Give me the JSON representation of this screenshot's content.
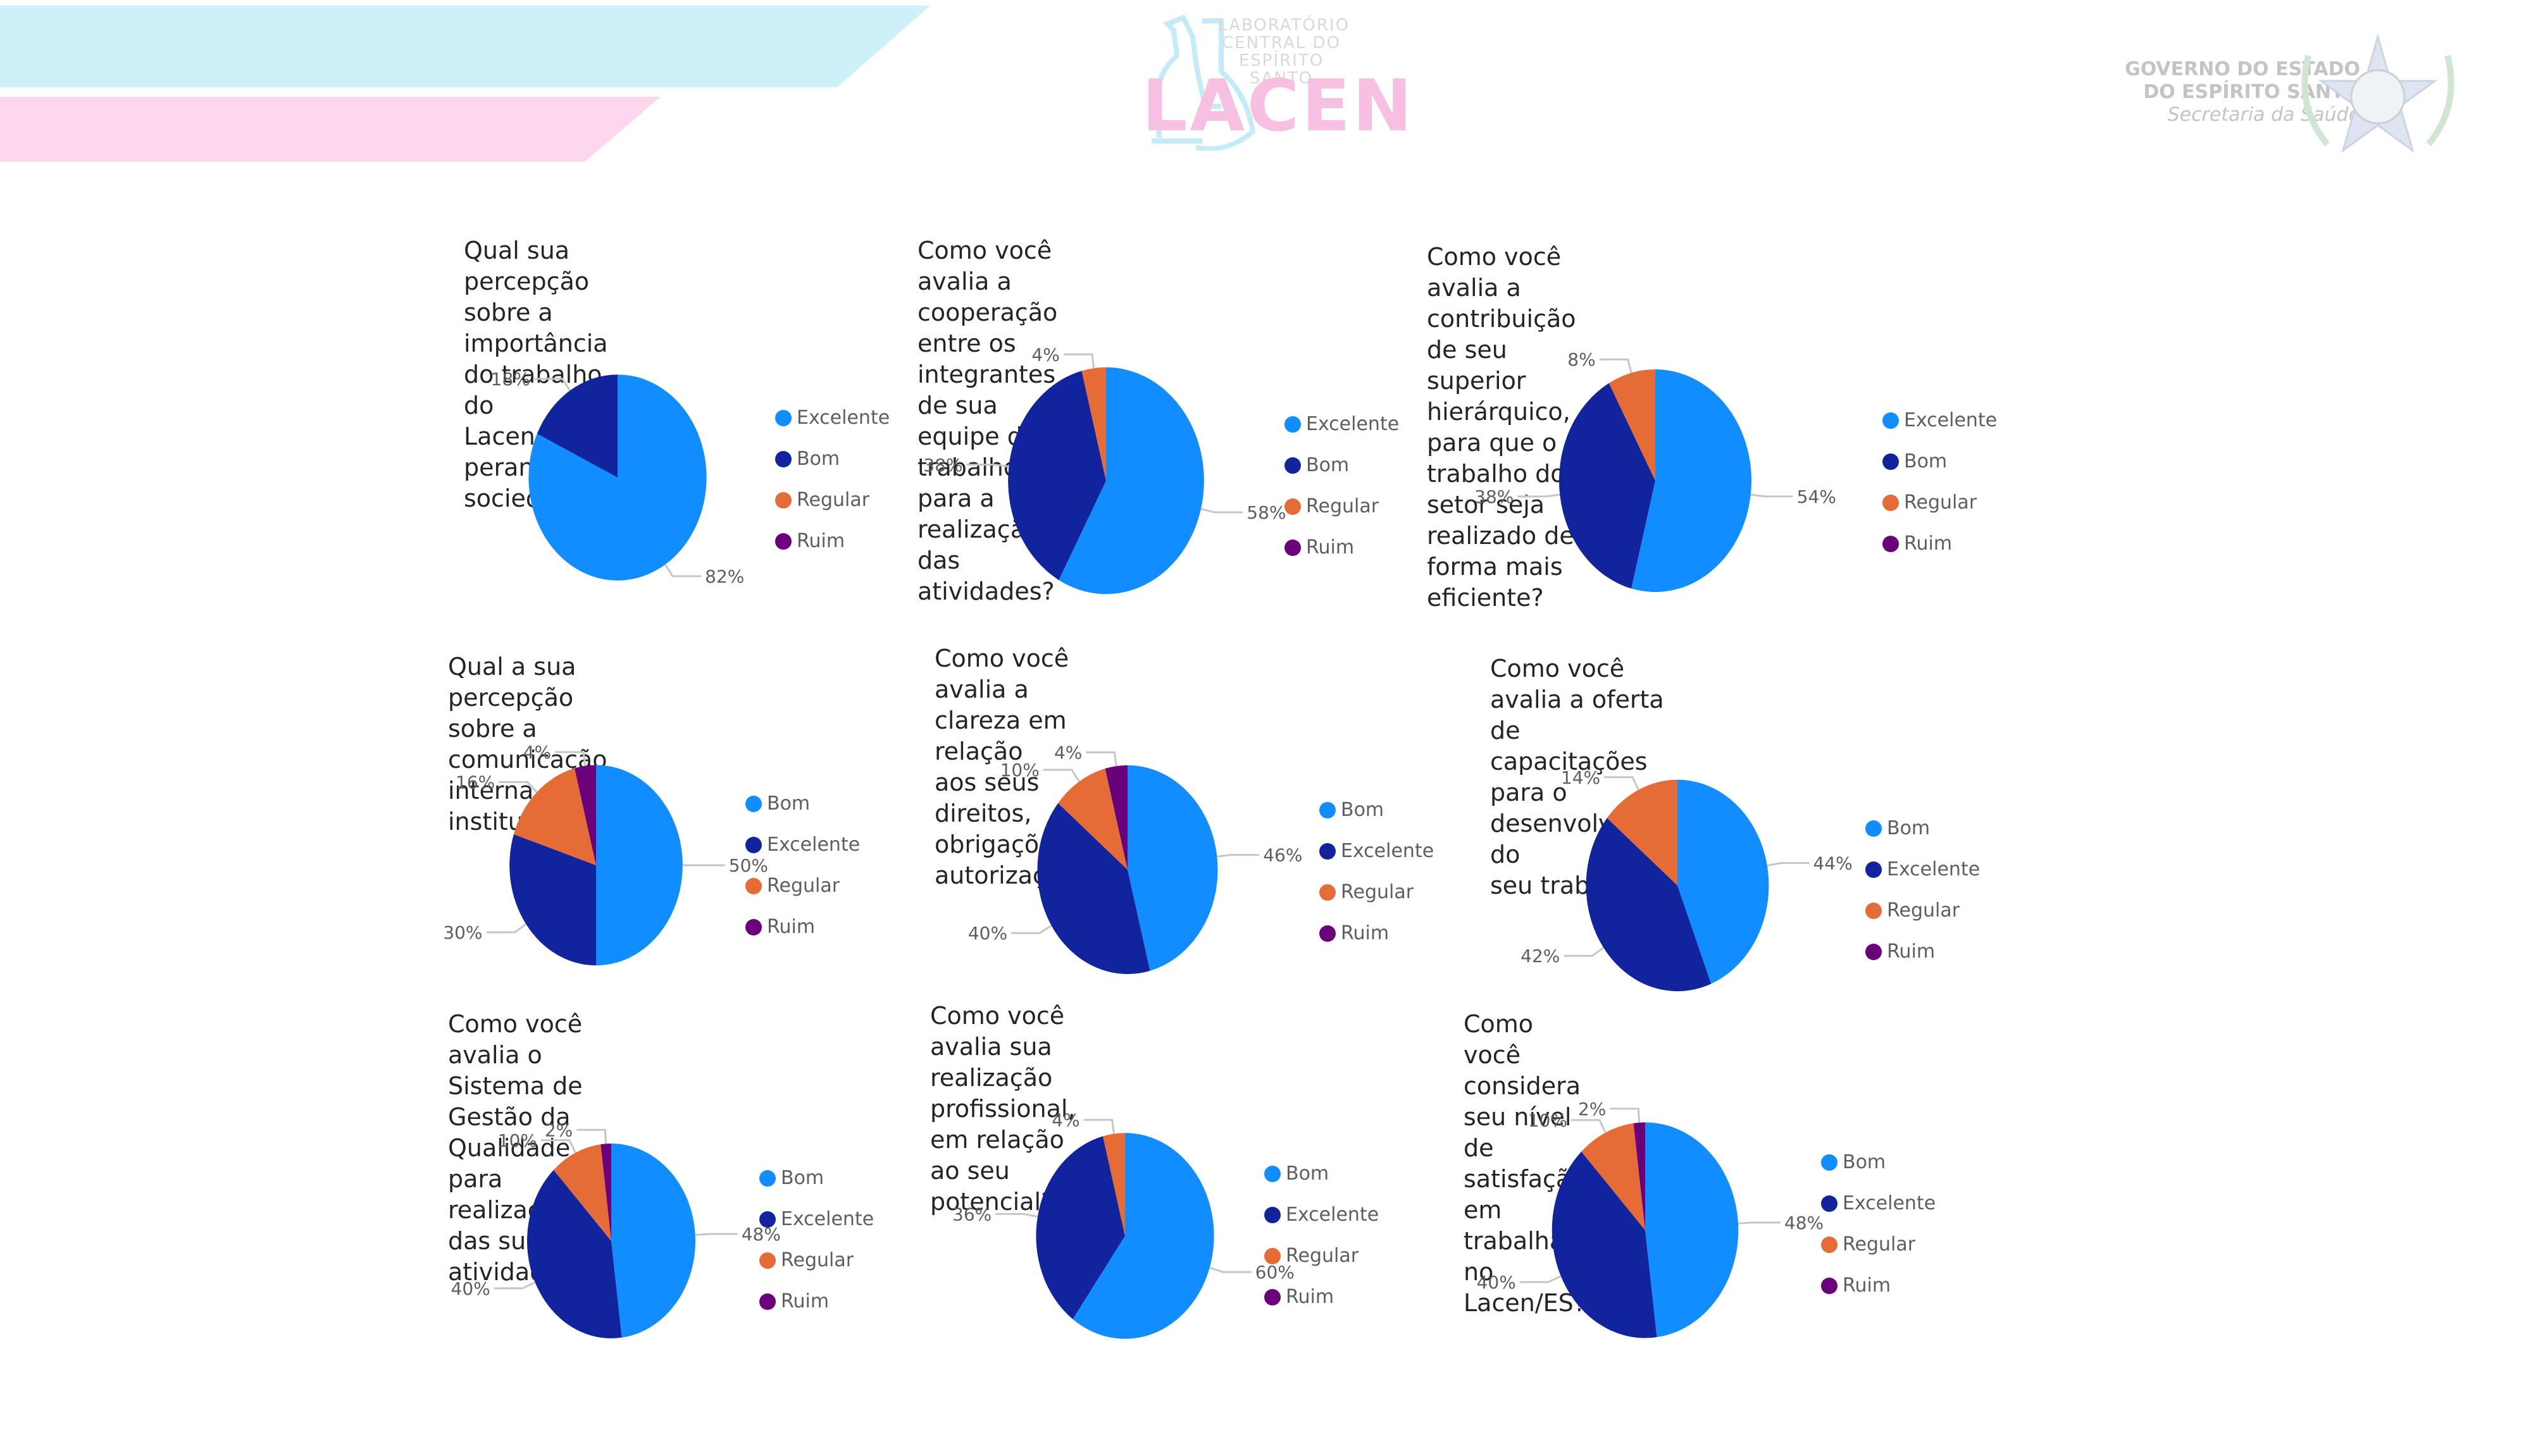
{
  "header": {
    "lacen_logo": {
      "subtitle_lines": [
        "LABORATÓRIO",
        "CENTRAL DO",
        "ESPÍRITO SANTO"
      ],
      "wordmark": "LACEN"
    },
    "government": {
      "line1": "GOVERNO DO ESTADO",
      "line2": "DO ESPÍRITO SANTO",
      "line3": "Secretaria da Saúde"
    }
  },
  "colors": {
    "primary_light_blue": "#118dff",
    "dark_blue": "#12239e",
    "orange": "#e66c37",
    "purple": "#6b007b",
    "title_text": "#252423",
    "label_text": "#605e5c",
    "band_blue": "#cdf0f9",
    "band_pink": "#fdd7ed"
  },
  "chart_data": [
    {
      "type": "pie",
      "title": "Qual sua percepção sobre a importância do trabalho do Lacen/ES perante a sociedade?",
      "legend": [
        "Excelente",
        "Bom",
        "Regular",
        "Ruim"
      ],
      "legend_placement": "right",
      "slices": [
        {
          "label": "Excelente",
          "value": 82,
          "color": "#118dff"
        },
        {
          "label": "Bom",
          "value": 18,
          "color": "#12239e"
        },
        {
          "label": "Regular",
          "value": 0,
          "color": "#e66c37"
        },
        {
          "label": "Ruim",
          "value": 0,
          "color": "#6b007b"
        }
      ],
      "data_labels": [
        "82%",
        "18%"
      ]
    },
    {
      "type": "pie",
      "title": "Como você avalia a cooperação entre os integrantes de sua equipe de trabalho para a realização das atividades?",
      "legend": [
        "Excelente",
        "Bom",
        "Regular",
        "Ruim"
      ],
      "legend_placement": "right",
      "slices": [
        {
          "label": "Excelente",
          "value": 58,
          "color": "#118dff"
        },
        {
          "label": "Bom",
          "value": 38,
          "color": "#12239e"
        },
        {
          "label": "Regular",
          "value": 4,
          "color": "#e66c37"
        },
        {
          "label": "Ruim",
          "value": 0,
          "color": "#6b007b"
        }
      ],
      "data_labels": [
        "58%",
        "38%",
        "4%"
      ]
    },
    {
      "type": "pie",
      "title": "Como você avalia a contribuição de seu superior hierárquico, para que o trabalho do setor seja realizado de forma mais eficiente?",
      "legend": [
        "Excelente",
        "Bom",
        "Regular",
        "Ruim"
      ],
      "legend_placement": "right",
      "slices": [
        {
          "label": "Excelente",
          "value": 54,
          "color": "#118dff"
        },
        {
          "label": "Bom",
          "value": 38,
          "color": "#12239e"
        },
        {
          "label": "Regular",
          "value": 8,
          "color": "#e66c37"
        },
        {
          "label": "Ruim",
          "value": 0,
          "color": "#6b007b"
        }
      ],
      "data_labels": [
        "54%",
        "38%",
        "8%"
      ]
    },
    {
      "type": "pie",
      "title": "Qual a sua percepção sobre a comunicação interna institucional?",
      "legend": [
        "Bom",
        "Excelente",
        "Regular",
        "Ruim"
      ],
      "legend_placement": "right",
      "slices": [
        {
          "label": "Bom",
          "value": 50,
          "color": "#118dff"
        },
        {
          "label": "Excelente",
          "value": 30,
          "color": "#12239e"
        },
        {
          "label": "Regular",
          "value": 16,
          "color": "#e66c37"
        },
        {
          "label": "Ruim",
          "value": 4,
          "color": "#6b007b"
        }
      ],
      "data_labels": [
        "50%",
        "30%",
        "16%",
        "4%"
      ]
    },
    {
      "type": "pie",
      "title": "Como você avalia a clareza em relação aos seus direitos, obrigações e autorizações?",
      "legend": [
        "Bom",
        "Excelente",
        "Regular",
        "Ruim"
      ],
      "legend_placement": "right",
      "slices": [
        {
          "label": "Bom",
          "value": 46,
          "color": "#118dff"
        },
        {
          "label": "Excelente",
          "value": 40,
          "color": "#12239e"
        },
        {
          "label": "Regular",
          "value": 10,
          "color": "#e66c37"
        },
        {
          "label": "Ruim",
          "value": 4,
          "color": "#6b007b"
        }
      ],
      "data_labels": [
        "46%",
        "40%",
        "10%",
        "4%"
      ]
    },
    {
      "type": "pie",
      "title": "Como você avalia a oferta de capacitações para o desenvolvimento do seu trabalho?",
      "legend": [
        "Bom",
        "Excelente",
        "Regular",
        "Ruim"
      ],
      "legend_placement": "right",
      "slices": [
        {
          "label": "Bom",
          "value": 44,
          "color": "#118dff"
        },
        {
          "label": "Excelente",
          "value": 42,
          "color": "#12239e"
        },
        {
          "label": "Regular",
          "value": 14,
          "color": "#e66c37"
        },
        {
          "label": "Ruim",
          "value": 0,
          "color": "#6b007b"
        }
      ],
      "data_labels": [
        "44%",
        "42%",
        "14%"
      ]
    },
    {
      "type": "pie",
      "title": "Como você avalia o Sistema de Gestão da Qualidade para realização das suas atividades?",
      "legend": [
        "Bom",
        "Excelente",
        "Regular",
        "Ruim"
      ],
      "legend_placement": "right",
      "slices": [
        {
          "label": "Bom",
          "value": 48,
          "color": "#118dff"
        },
        {
          "label": "Excelente",
          "value": 40,
          "color": "#12239e"
        },
        {
          "label": "Regular",
          "value": 10,
          "color": "#e66c37"
        },
        {
          "label": "Ruim",
          "value": 2,
          "color": "#6b007b"
        }
      ],
      "data_labels": [
        "48%",
        "40%",
        "10%",
        "2%"
      ]
    },
    {
      "type": "pie",
      "title": "Como você avalia sua realização profissional, em relação ao seu potencial?",
      "legend": [
        "Bom",
        "Excelente",
        "Regular",
        "Ruim"
      ],
      "legend_placement": "right",
      "slices": [
        {
          "label": "Bom",
          "value": 60,
          "color": "#118dff"
        },
        {
          "label": "Excelente",
          "value": 36,
          "color": "#12239e"
        },
        {
          "label": "Regular",
          "value": 4,
          "color": "#e66c37"
        },
        {
          "label": "Ruim",
          "value": 0,
          "color": "#6b007b"
        }
      ],
      "data_labels": [
        "60%",
        "36%",
        "4%"
      ]
    },
    {
      "type": "pie",
      "title": "Como você considera seu nível de satisfação em trabalhar no Lacen/ES?",
      "legend": [
        "Bom",
        "Excelente",
        "Regular",
        "Ruim"
      ],
      "legend_placement": "right",
      "slices": [
        {
          "label": "Bom",
          "value": 48,
          "color": "#118dff"
        },
        {
          "label": "Excelente",
          "value": 40,
          "color": "#12239e"
        },
        {
          "label": "Regular",
          "value": 10,
          "color": "#e66c37"
        },
        {
          "label": "Ruim",
          "value": 2,
          "color": "#6b007b"
        }
      ],
      "data_labels": [
        "48%",
        "40%",
        "10%",
        "2%"
      ]
    }
  ],
  "panels": [
    {
      "title_lines": "Qual sua percepção sobre a\nimportância do trabalho do\nLacen/ES perante a sociedade?"
    },
    {
      "title_lines": "Como você avalia a cooperação entre os\nintegrantes de sua equipe de trabalho\npara a realização das atividades?"
    },
    {
      "title_lines": "Como você avalia a contribuição de seu\nsuperior hierárquico, para que o trabalho do\nsetor seja realizado de forma mais eficiente?"
    },
    {
      "title_lines": "Qual a sua percepção sobre a\ncomunicação interna institucional?"
    },
    {
      "title_lines": "Como você avalia a clareza em relação\naos seus direitos, obrigações e\nautorizações?"
    },
    {
      "title_lines": "Como você avalia a oferta de\ncapacitações para o desenvolvimento do\nseu trabalho?"
    },
    {
      "title_lines": "Como você avalia o Sistema de\nGestão da Qualidade para\nrealização das suas atividades?"
    },
    {
      "title_lines": "Como você avalia sua realização\nprofissional, em relação ao seu\npotencial?"
    },
    {
      "title_lines": "Como você considera seu nível de\nsatisfação em trabalhar no Lacen/ES?"
    }
  ]
}
